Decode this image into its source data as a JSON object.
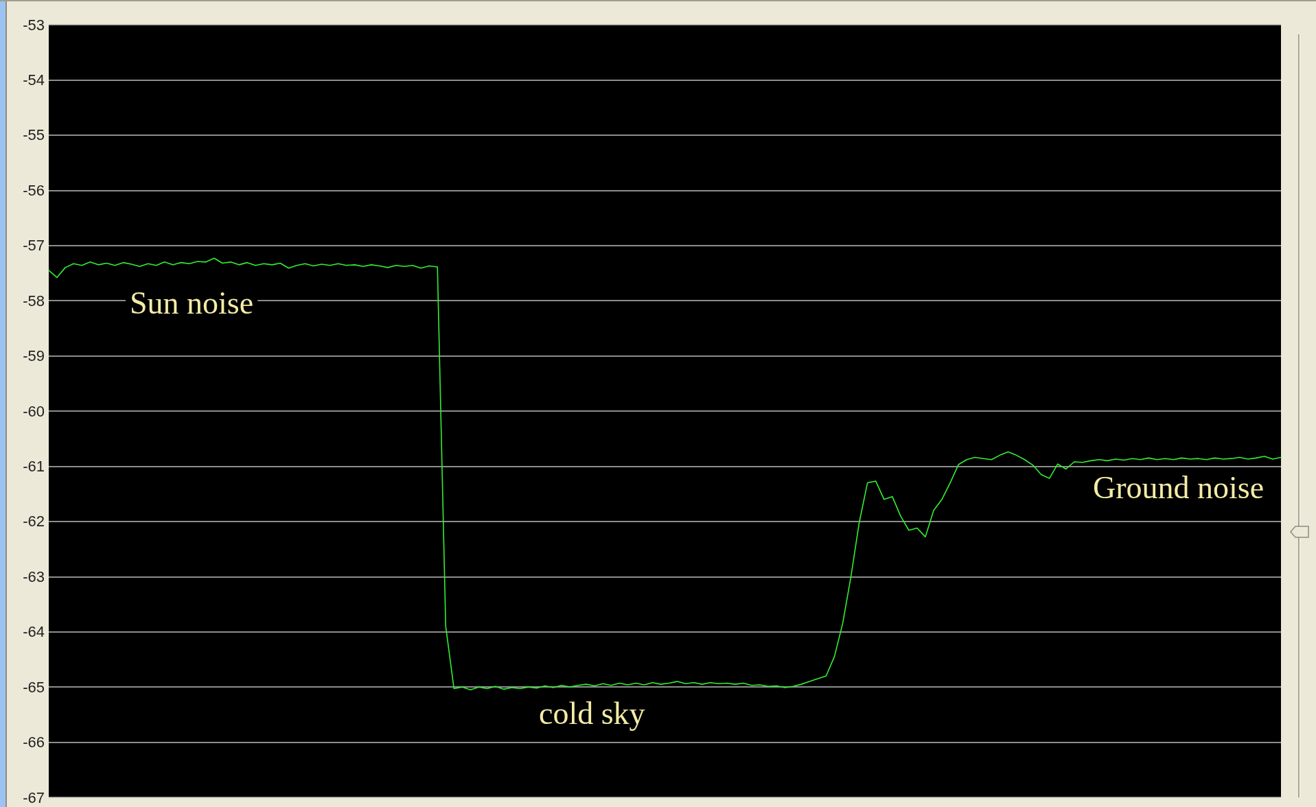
{
  "chart_data": {
    "type": "line",
    "categories": [
      null,
      null,
      null,
      null,
      null,
      null,
      null,
      null,
      null,
      null,
      null,
      null,
      null,
      null,
      null,
      null,
      null,
      null,
      null,
      null,
      null,
      null,
      null,
      null,
      null,
      null,
      null,
      null,
      null,
      null,
      null,
      null,
      null,
      null,
      null,
      null,
      null,
      null,
      null,
      null,
      null,
      null,
      null,
      null,
      null,
      null,
      null,
      null,
      null,
      null,
      null,
      null,
      null,
      null,
      null,
      null,
      null,
      null,
      null,
      null,
      null,
      null,
      null,
      null,
      null,
      null,
      null,
      null,
      null,
      null,
      null,
      null,
      null,
      null,
      null,
      null,
      null,
      null,
      null,
      null,
      null,
      null,
      null,
      null,
      null,
      null,
      null,
      null,
      null,
      null,
      null,
      null,
      null,
      null,
      null,
      null,
      null,
      null,
      null,
      null,
      null,
      null,
      null,
      null,
      null,
      null,
      null,
      null,
      null,
      null,
      null,
      null,
      null,
      null,
      null,
      null,
      null,
      null,
      null,
      null,
      null,
      null,
      null,
      null,
      null,
      null,
      null,
      null,
      null,
      null,
      null,
      null,
      null,
      null,
      null,
      null,
      null,
      null,
      null,
      null,
      null,
      null,
      null,
      null,
      null,
      null,
      null,
      null,
      null,
      null
    ],
    "series": [
      {
        "color": "#33ee33",
        "values": [
          -57.45,
          -57.58,
          -57.4,
          -57.33,
          -57.36,
          -57.3,
          -57.35,
          -57.32,
          -57.36,
          -57.31,
          -57.34,
          -57.38,
          -57.33,
          -57.36,
          -57.3,
          -57.35,
          -57.31,
          -57.33,
          -57.29,
          -57.3,
          -57.23,
          -57.32,
          -57.3,
          -57.35,
          -57.31,
          -57.36,
          -57.33,
          -57.35,
          -57.32,
          -57.41,
          -57.36,
          -57.33,
          -57.37,
          -57.34,
          -57.36,
          -57.33,
          -57.36,
          -57.35,
          -57.38,
          -57.35,
          -57.37,
          -57.4,
          -57.36,
          -57.38,
          -57.36,
          -57.41,
          -57.37,
          -57.39,
          -63.9,
          -65.03,
          -65.0,
          -65.05,
          -65.0,
          -65.03,
          -64.99,
          -65.04,
          -65.01,
          -65.03,
          -65.0,
          -65.02,
          -64.98,
          -65.01,
          -64.97,
          -65.0,
          -64.97,
          -64.95,
          -64.98,
          -64.94,
          -64.97,
          -64.93,
          -64.96,
          -64.93,
          -64.96,
          -64.92,
          -64.95,
          -64.93,
          -64.9,
          -64.94,
          -64.92,
          -64.95,
          -64.92,
          -64.94,
          -64.93,
          -64.95,
          -64.93,
          -64.97,
          -64.96,
          -64.99,
          -64.98,
          -65.01,
          -64.99,
          -64.95,
          -64.9,
          -64.85,
          -64.8,
          -64.45,
          -63.85,
          -63.0,
          -62.02,
          -61.3,
          -61.27,
          -61.6,
          -61.55,
          -61.9,
          -62.16,
          -62.12,
          -62.28,
          -61.8,
          -61.6,
          -61.3,
          -60.97,
          -60.88,
          -60.84,
          -60.86,
          -60.88,
          -60.8,
          -60.74,
          -60.8,
          -60.88,
          -60.98,
          -61.15,
          -61.22,
          -60.96,
          -61.05,
          -60.92,
          -60.93,
          -60.9,
          -60.88,
          -60.9,
          -60.87,
          -60.89,
          -60.86,
          -60.88,
          -60.85,
          -60.88,
          -60.86,
          -60.88,
          -60.85,
          -60.87,
          -60.86,
          -60.88,
          -60.85,
          -60.87,
          -60.86,
          -60.84,
          -60.87,
          -60.85,
          -60.82,
          -60.87,
          -60.84
        ]
      }
    ],
    "ylim": [
      -67,
      -53
    ],
    "yticks": [
      -67,
      -66,
      -65,
      -64,
      -63,
      -62,
      -61,
      -60,
      -59,
      -58,
      -57,
      -56,
      -55,
      -54,
      -53
    ],
    "grid": "y",
    "tick_labels": "y",
    "marker": "none",
    "line_style": "solid",
    "annotations": [
      "Sun noise",
      "cold sky",
      "Ground noise"
    ]
  }
}
